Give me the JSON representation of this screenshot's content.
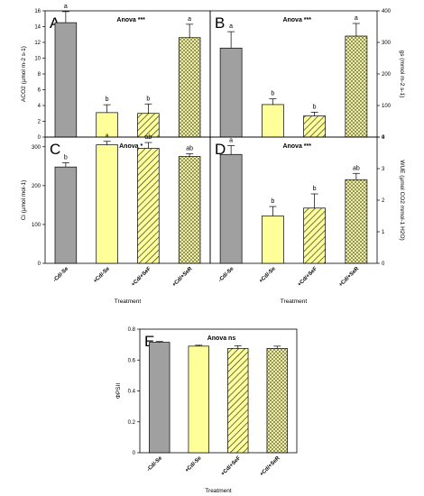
{
  "colors": {
    "gray": "#a0a0a0",
    "yellow": "#ffff99",
    "hatch": "#ffff99",
    "frame": "#000000"
  },
  "categories": [
    "-Cd/-Se",
    "+Cd/-Se",
    "+Cd/+SeF",
    "+Cd/+SeR"
  ],
  "xlabel": "Treatment",
  "chart_data": [
    {
      "type": "bar",
      "panel": "A",
      "anova": "Anova ***",
      "ylabel": "ACO2 (µmol m-2 s-1)",
      "ylim": [
        0,
        16
      ],
      "yticks": [
        0,
        2,
        4,
        6,
        8,
        10,
        12,
        14,
        16
      ],
      "categories": [
        "-Cd/-Se",
        "+Cd/-Se",
        "+Cd/+SeF",
        "+Cd/+SeR"
      ],
      "values": [
        14.5,
        3.1,
        3.0,
        12.6
      ],
      "errors": [
        1.4,
        1.0,
        1.2,
        1.7
      ],
      "letters": [
        "a",
        "b",
        "b",
        "a"
      ]
    },
    {
      "type": "bar",
      "panel": "B",
      "anova": "Anova ***",
      "ylabel": "gs (mmol m-2 s-1)",
      "ylim": [
        0,
        400
      ],
      "yticks": [
        0,
        100,
        200,
        300,
        400
      ],
      "categories": [
        "-Cd/-Se",
        "+Cd/-Se",
        "+Cd/+SeF",
        "+Cd/+SeR"
      ],
      "values": [
        282,
        103,
        67,
        320
      ],
      "errors": [
        52,
        18,
        12,
        40
      ],
      "letters": [
        "a",
        "b",
        "b",
        "a"
      ]
    },
    {
      "type": "bar",
      "panel": "C",
      "anova": "Anova *",
      "ylabel": "Ci (µmol mol-1)",
      "ylim": [
        0,
        325
      ],
      "yticks": [
        0,
        100,
        200,
        300
      ],
      "categories": [
        "-Cd/-Se",
        "+Cd/-Se",
        "+Cd/+SeF",
        "+Cd/+SeR"
      ],
      "values": [
        248,
        305,
        296,
        275
      ],
      "errors": [
        11,
        9,
        15,
        7
      ],
      "letters": [
        "b",
        "a",
        "ab",
        "ab"
      ]
    },
    {
      "type": "bar",
      "panel": "D",
      "anova": "Anova ***",
      "ylabel": "WUE (µmol CO2 mmol-1 H2O)",
      "ylim": [
        0,
        4
      ],
      "yticks": [
        0,
        1,
        2,
        3,
        4
      ],
      "categories": [
        "-Cd/-Se",
        "+Cd/-Se",
        "+Cd/+SeF",
        "+Cd/+SeR"
      ],
      "values": [
        3.45,
        1.5,
        1.75,
        2.65
      ],
      "errors": [
        0.28,
        0.3,
        0.45,
        0.2
      ],
      "letters": [
        "a",
        "b",
        "b",
        "ab"
      ]
    },
    {
      "type": "bar",
      "panel": "E",
      "anova": "Anova ns",
      "ylabel": "ΦPSII",
      "ylim": [
        0,
        0.8
      ],
      "yticks": [
        0,
        0.2,
        0.4,
        0.6,
        0.8
      ],
      "categories": [
        "-Cd/-Se",
        "+Cd/-Se",
        "+Cd/+SeF",
        "+Cd/+SeR"
      ],
      "values": [
        0.715,
        0.69,
        0.675,
        0.675
      ],
      "errors": [
        0.005,
        0.006,
        0.018,
        0.015
      ],
      "letters": []
    }
  ]
}
